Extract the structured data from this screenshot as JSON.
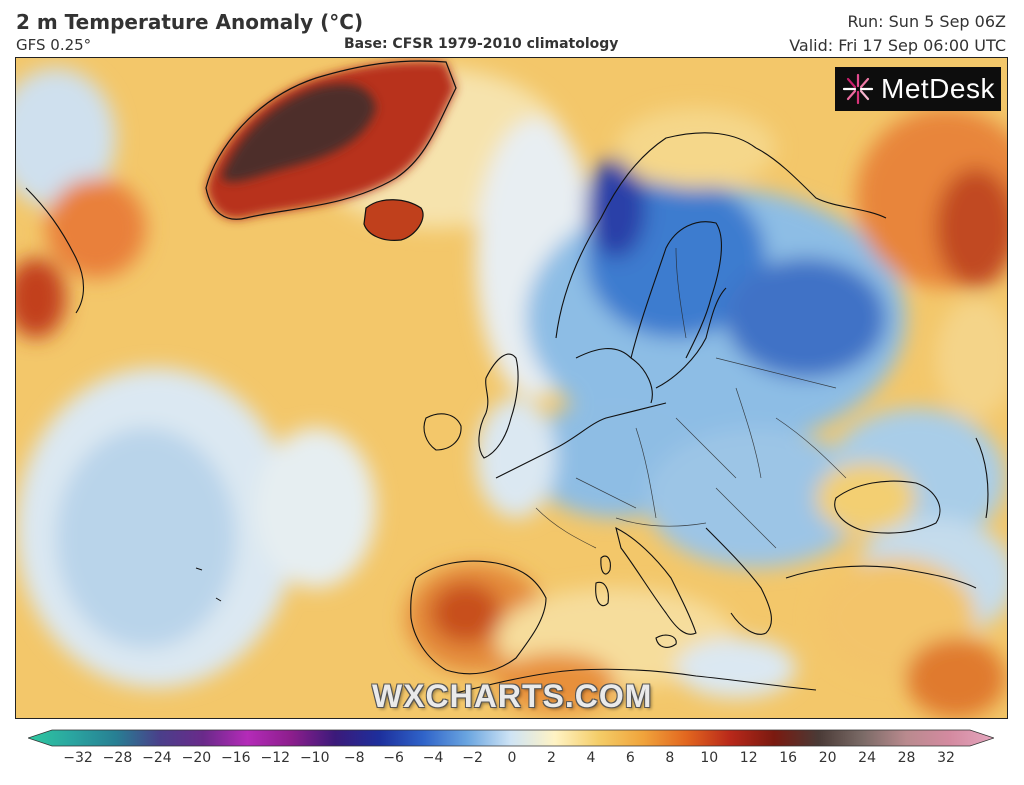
{
  "header": {
    "title": "2 m Temperature Anomaly (°C)",
    "model": "GFS 0.25°",
    "base": "Base: CFSR 1979-2010 climatology",
    "run": "Run: Sun 5 Sep 06Z",
    "valid": "Valid: Fri 17 Sep 06:00 UTC"
  },
  "logo": {
    "text": "MetDesk",
    "icon": "starburst-logo-icon"
  },
  "watermark": "WXCHARTS.COM",
  "legend": {
    "ticks": [
      "−32",
      "−28",
      "−24",
      "−20",
      "−16",
      "−12",
      "−10",
      "−8",
      "−6",
      "−4",
      "−2",
      "0",
      "2",
      "4",
      "6",
      "8",
      "10",
      "12",
      "16",
      "20",
      "24",
      "28",
      "32"
    ],
    "colors": [
      "#2fc9a0",
      "#2aa5a0",
      "#277f93",
      "#4a3f8a",
      "#6a2a8a",
      "#b42bb8",
      "#8c1e8c",
      "#3b1a7a",
      "#1d2f9c",
      "#2f63c9",
      "#6aa5e0",
      "#cfe4f5",
      "#fff3c4",
      "#f4cd68",
      "#f0a43c",
      "#e2661f",
      "#b8281a",
      "#7a1a10",
      "#4a3a36",
      "#7a6a66",
      "#b98a8e",
      "#d48aa0",
      "#e4a6be"
    ]
  },
  "map": {
    "palette": {
      "ocean_warm": "#f3ca6c",
      "ocean_pale": "#f7e2a8",
      "cold_pale": "#dbe9f3",
      "cold_mid": "#8fbfe6",
      "cold_strong": "#3f7fd0",
      "cold_deep": "#2745b0",
      "hot": "#e88a3a",
      "very_hot": "#c2401c",
      "extreme": "#5a2a20",
      "coast": "#111111"
    }
  }
}
